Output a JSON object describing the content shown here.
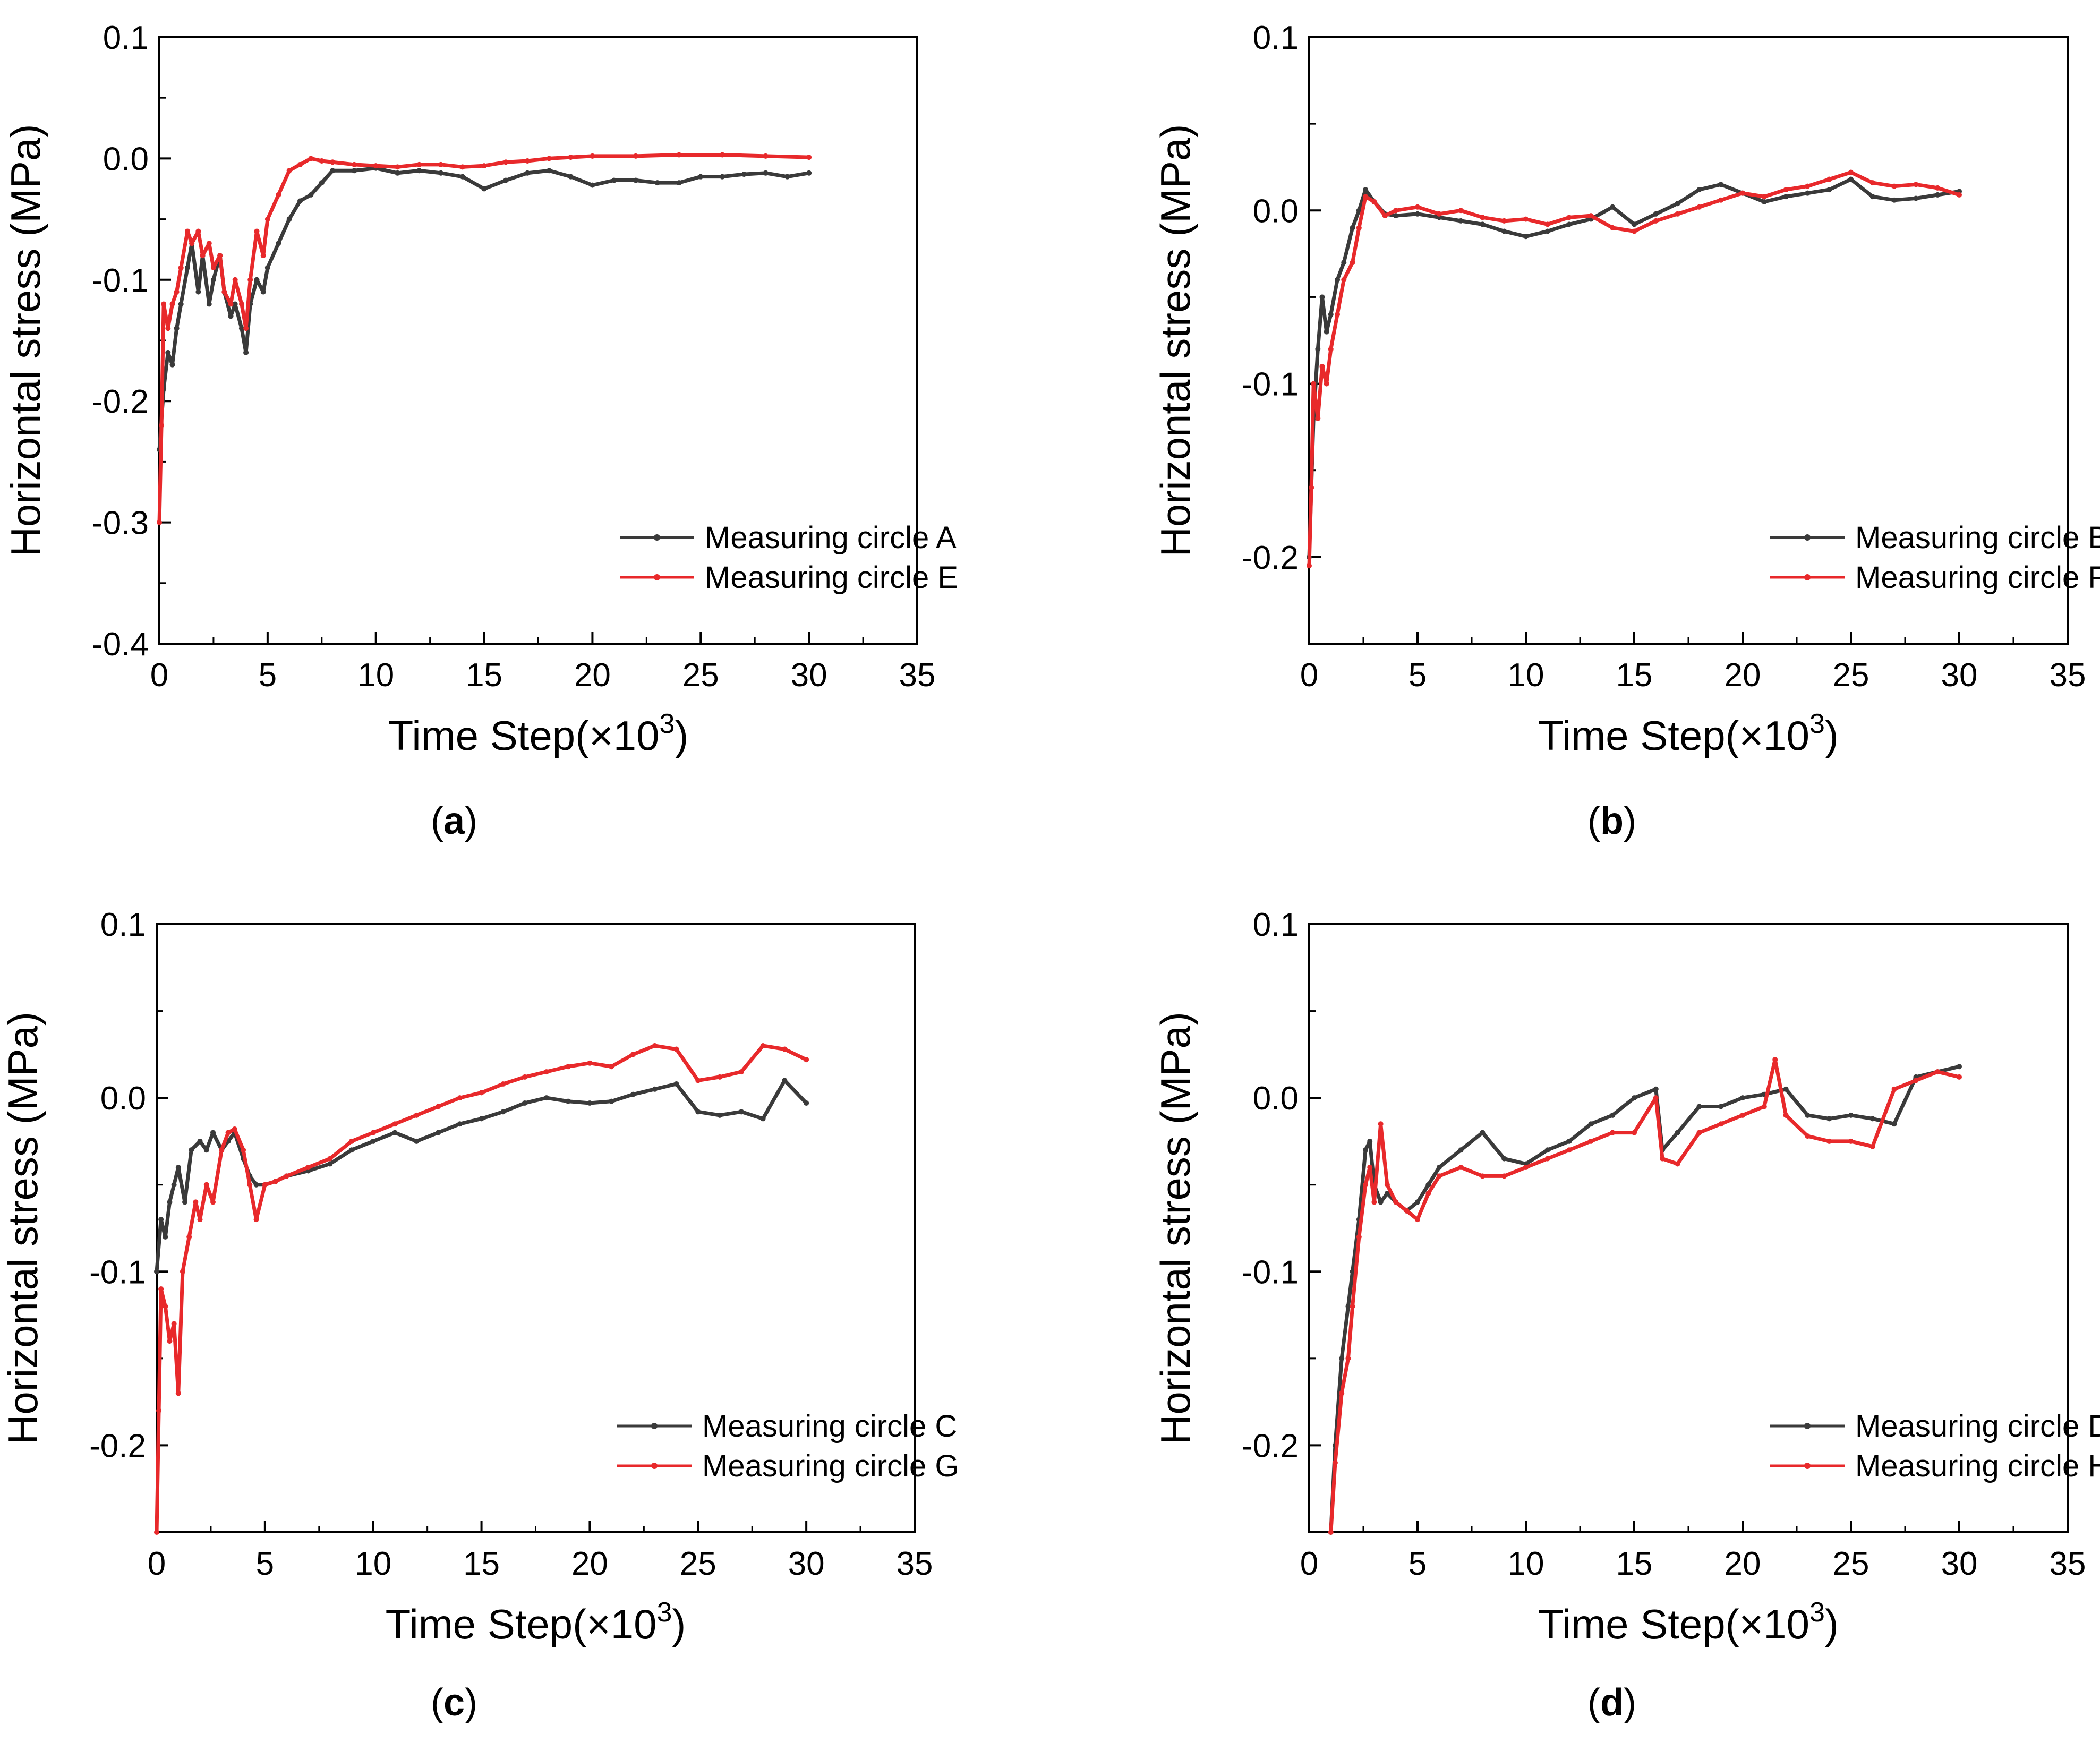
{
  "figure": {
    "colors": {
      "series_black": "#3a3a3a",
      "series_red": "#e8292b",
      "axis": "#000000"
    },
    "captions": [
      "a",
      "b",
      "c",
      "d"
    ]
  },
  "chart_data": [
    {
      "type": "line",
      "panel": "a",
      "xlabel": "Time Step(×10",
      "xlabel_sup": "3",
      "xlabel_close": ")",
      "ylabel": "Horizontal stress (MPa)",
      "xlim": [
        0,
        35
      ],
      "ylim": [
        -0.4,
        0.1
      ],
      "xticks": [
        0,
        5,
        10,
        15,
        20,
        25,
        30,
        35
      ],
      "xtick_labels": [
        "0",
        "5",
        "10",
        "15",
        "20",
        "25",
        "30",
        "35"
      ],
      "yticks": [
        -0.4,
        -0.3,
        -0.2,
        -0.1,
        0.0,
        0.1
      ],
      "ytick_labels": [
        "-0.4",
        "-0.3",
        "-0.2",
        "-0.1",
        "0.0",
        "0.1"
      ],
      "legend_position": "bottom-right",
      "series": [
        {
          "name": "Measuring circle A",
          "color": "#3a3a3a",
          "x": [
            0,
            0.2,
            0.4,
            0.6,
            0.8,
            1.0,
            1.3,
            1.5,
            1.8,
            2.0,
            2.3,
            2.5,
            2.8,
            3.0,
            3.3,
            3.5,
            3.8,
            4.0,
            4.2,
            4.5,
            4.8,
            5.0,
            5.5,
            6.0,
            6.5,
            7.0,
            7.5,
            8.0,
            9.0,
            10.0,
            11.0,
            12.0,
            13.0,
            14.0,
            15.0,
            16.0,
            17.0,
            18.0,
            19.0,
            20.0,
            21.0,
            22.0,
            23.0,
            24.0,
            25.0,
            26.0,
            27.0,
            28.0,
            29.0,
            30.0
          ],
          "y": [
            -0.24,
            -0.19,
            -0.16,
            -0.17,
            -0.14,
            -0.12,
            -0.09,
            -0.07,
            -0.11,
            -0.08,
            -0.12,
            -0.1,
            -0.08,
            -0.11,
            -0.13,
            -0.12,
            -0.14,
            -0.16,
            -0.12,
            -0.1,
            -0.11,
            -0.09,
            -0.07,
            -0.05,
            -0.035,
            -0.03,
            -0.02,
            -0.01,
            -0.01,
            -0.008,
            -0.012,
            -0.01,
            -0.012,
            -0.015,
            -0.025,
            -0.018,
            -0.012,
            -0.01,
            -0.015,
            -0.022,
            -0.018,
            -0.018,
            -0.02,
            -0.02,
            -0.015,
            -0.015,
            -0.013,
            -0.012,
            -0.015,
            -0.012
          ]
        },
        {
          "name": "Measuring circle E",
          "color": "#e8292b",
          "x": [
            0,
            0.1,
            0.2,
            0.4,
            0.6,
            0.8,
            1.0,
            1.3,
            1.5,
            1.8,
            2.0,
            2.3,
            2.5,
            2.8,
            3.0,
            3.3,
            3.5,
            3.8,
            4.0,
            4.2,
            4.5,
            4.8,
            5.0,
            5.5,
            6.0,
            6.5,
            7.0,
            7.5,
            8.0,
            9.0,
            10.0,
            11.0,
            12.0,
            13.0,
            14.0,
            15.0,
            16.0,
            17.0,
            18.0,
            19.0,
            20.0,
            22.0,
            24.0,
            26.0,
            28.0,
            30.0
          ],
          "y": [
            -0.3,
            -0.22,
            -0.12,
            -0.14,
            -0.12,
            -0.11,
            -0.09,
            -0.06,
            -0.07,
            -0.06,
            -0.08,
            -0.07,
            -0.09,
            -0.08,
            -0.11,
            -0.12,
            -0.1,
            -0.12,
            -0.14,
            -0.1,
            -0.06,
            -0.08,
            -0.05,
            -0.03,
            -0.01,
            -0.005,
            0.0,
            -0.002,
            -0.003,
            -0.005,
            -0.006,
            -0.007,
            -0.005,
            -0.005,
            -0.007,
            -0.006,
            -0.003,
            -0.002,
            0.0,
            0.001,
            0.002,
            0.002,
            0.003,
            0.003,
            0.002,
            0.001
          ]
        }
      ]
    },
    {
      "type": "line",
      "panel": "b",
      "xlabel": "Time Step(×10",
      "xlabel_sup": "3",
      "xlabel_close": ")",
      "ylabel": "Horizontal stress (MPa)",
      "xlim": [
        0,
        35
      ],
      "ylim": [
        -0.25,
        0.1
      ],
      "xticks": [
        0,
        5,
        10,
        15,
        20,
        25,
        30,
        35
      ],
      "xtick_labels": [
        "0",
        "5",
        "10",
        "15",
        "20",
        "25",
        "30",
        "35"
      ],
      "yticks": [
        -0.2,
        -0.1,
        0.0,
        0.1
      ],
      "ytick_labels": [
        "-0.2",
        "-0.1",
        "0.0",
        "0.1"
      ],
      "legend_position": "bottom-right",
      "series": [
        {
          "name": "Measuring circle B",
          "color": "#3a3a3a",
          "x": [
            0,
            0.2,
            0.4,
            0.6,
            0.8,
            1.0,
            1.3,
            1.6,
            2.0,
            2.3,
            2.6,
            3.0,
            3.5,
            4.0,
            5.0,
            6.0,
            7.0,
            8.0,
            9.0,
            10.0,
            11.0,
            12.0,
            13.0,
            14.0,
            15.0,
            16.0,
            17.0,
            18.0,
            19.0,
            20.0,
            21.0,
            22.0,
            23.0,
            24.0,
            25.0,
            26.0,
            27.0,
            28.0,
            29.0,
            30.0
          ],
          "y": [
            -0.2,
            -0.12,
            -0.08,
            -0.05,
            -0.07,
            -0.06,
            -0.04,
            -0.03,
            -0.01,
            0.0,
            0.012,
            0.005,
            -0.002,
            -0.003,
            -0.002,
            -0.004,
            -0.006,
            -0.008,
            -0.012,
            -0.015,
            -0.012,
            -0.008,
            -0.005,
            0.002,
            -0.008,
            -0.002,
            0.004,
            0.012,
            0.015,
            0.01,
            0.005,
            0.008,
            0.01,
            0.012,
            0.018,
            0.008,
            0.006,
            0.007,
            0.009,
            0.011
          ]
        },
        {
          "name": "Measuring circle F",
          "color": "#e8292b",
          "x": [
            0,
            0.1,
            0.2,
            0.4,
            0.6,
            0.8,
            1.0,
            1.3,
            1.6,
            2.0,
            2.3,
            2.6,
            3.0,
            3.5,
            4.0,
            5.0,
            6.0,
            7.0,
            8.0,
            9.0,
            10.0,
            11.0,
            12.0,
            13.0,
            14.0,
            15.0,
            16.0,
            17.0,
            18.0,
            19.0,
            20.0,
            21.0,
            22.0,
            23.0,
            24.0,
            25.0,
            26.0,
            27.0,
            28.0,
            29.0,
            30.0
          ],
          "y": [
            -0.205,
            -0.16,
            -0.1,
            -0.12,
            -0.09,
            -0.1,
            -0.08,
            -0.06,
            -0.04,
            -0.03,
            -0.01,
            0.008,
            0.005,
            -0.003,
            0.0,
            0.002,
            -0.002,
            0.0,
            -0.004,
            -0.006,
            -0.005,
            -0.008,
            -0.004,
            -0.003,
            -0.01,
            -0.012,
            -0.006,
            -0.002,
            0.002,
            0.006,
            0.01,
            0.008,
            0.012,
            0.014,
            0.018,
            0.022,
            0.016,
            0.014,
            0.015,
            0.013,
            0.009
          ]
        }
      ]
    },
    {
      "type": "line",
      "panel": "c",
      "xlabel": "Time Step(×10",
      "xlabel_sup": "3",
      "xlabel_close": ")",
      "ylabel": "Horizontal stress (MPa)",
      "xlim": [
        0,
        35
      ],
      "ylim": [
        -0.25,
        0.1
      ],
      "xticks": [
        0,
        5,
        10,
        15,
        20,
        25,
        30,
        35
      ],
      "xtick_labels": [
        "0",
        "5",
        "10",
        "15",
        "20",
        "25",
        "30",
        "35"
      ],
      "yticks": [
        -0.2,
        -0.1,
        0.0,
        0.1
      ],
      "ytick_labels": [
        "-0.2",
        "-0.1",
        "0.0",
        "0.1"
      ],
      "legend_position": "bottom-right",
      "series": [
        {
          "name": "Measuring circle C",
          "color": "#3a3a3a",
          "x": [
            0,
            0.2,
            0.4,
            0.6,
            0.8,
            1.0,
            1.3,
            1.6,
            2.0,
            2.3,
            2.6,
            3.0,
            3.3,
            3.6,
            4.0,
            4.3,
            4.6,
            5.0,
            5.5,
            6.0,
            7.0,
            8.0,
            9.0,
            10.0,
            11.0,
            12.0,
            13.0,
            14.0,
            15.0,
            16.0,
            17.0,
            18.0,
            19.0,
            20.0,
            21.0,
            22.0,
            23.0,
            24.0,
            25.0,
            26.0,
            27.0,
            28.0,
            29.0,
            30.0
          ],
          "y": [
            -0.1,
            -0.07,
            -0.08,
            -0.06,
            -0.05,
            -0.04,
            -0.06,
            -0.03,
            -0.025,
            -0.03,
            -0.02,
            -0.03,
            -0.025,
            -0.02,
            -0.035,
            -0.045,
            -0.05,
            -0.05,
            -0.048,
            -0.045,
            -0.042,
            -0.038,
            -0.03,
            -0.025,
            -0.02,
            -0.025,
            -0.02,
            -0.015,
            -0.012,
            -0.008,
            -0.003,
            0.0,
            -0.002,
            -0.003,
            -0.002,
            0.002,
            0.005,
            0.008,
            -0.008,
            -0.01,
            -0.008,
            -0.012,
            0.01,
            -0.003
          ]
        },
        {
          "name": "Measuring circle G",
          "color": "#e8292b",
          "x": [
            0,
            0.1,
            0.2,
            0.4,
            0.6,
            0.8,
            1.0,
            1.2,
            1.5,
            1.8,
            2.0,
            2.3,
            2.6,
            3.0,
            3.3,
            3.6,
            4.0,
            4.3,
            4.6,
            5.0,
            5.5,
            6.0,
            7.0,
            8.0,
            9.0,
            10.0,
            11.0,
            12.0,
            13.0,
            14.0,
            15.0,
            16.0,
            17.0,
            18.0,
            19.0,
            20.0,
            21.0,
            22.0,
            23.0,
            24.0,
            25.0,
            26.0,
            27.0,
            28.0,
            29.0,
            30.0
          ],
          "y": [
            -0.25,
            -0.18,
            -0.11,
            -0.12,
            -0.14,
            -0.13,
            -0.17,
            -0.1,
            -0.08,
            -0.06,
            -0.07,
            -0.05,
            -0.06,
            -0.03,
            -0.02,
            -0.018,
            -0.03,
            -0.05,
            -0.07,
            -0.05,
            -0.048,
            -0.045,
            -0.04,
            -0.035,
            -0.025,
            -0.02,
            -0.015,
            -0.01,
            -0.005,
            0.0,
            0.003,
            0.008,
            0.012,
            0.015,
            0.018,
            0.02,
            0.018,
            0.025,
            0.03,
            0.028,
            0.01,
            0.012,
            0.015,
            0.03,
            0.028,
            0.022
          ]
        }
      ]
    },
    {
      "type": "line",
      "panel": "d",
      "xlabel": "Time Step(×10",
      "xlabel_sup": "3",
      "xlabel_close": ")",
      "ylabel": "Horizontal stress (MPa)",
      "xlim": [
        0,
        35
      ],
      "ylim": [
        -0.25,
        0.1
      ],
      "xticks": [
        0,
        5,
        10,
        15,
        20,
        25,
        30,
        35
      ],
      "xtick_labels": [
        "0",
        "5",
        "10",
        "15",
        "20",
        "25",
        "30",
        "35"
      ],
      "yticks": [
        -0.2,
        -0.1,
        0.0,
        0.1
      ],
      "ytick_labels": [
        "-0.2",
        "-0.1",
        "0.0",
        "0.1"
      ],
      "legend_position": "bottom-right",
      "series": [
        {
          "name": "Measuring circle D",
          "color": "#3a3a3a",
          "x": [
            1.0,
            1.2,
            1.5,
            1.8,
            2.0,
            2.3,
            2.6,
            2.8,
            3.0,
            3.3,
            3.6,
            4.0,
            4.5,
            5.0,
            5.5,
            6.0,
            7.0,
            8.0,
            9.0,
            10.0,
            11.0,
            12.0,
            13.0,
            14.0,
            15.0,
            16.0,
            16.3,
            17.0,
            18.0,
            19.0,
            20.0,
            21.0,
            22.0,
            23.0,
            24.0,
            25.0,
            26.0,
            27.0,
            28.0,
            29.0,
            30.0
          ],
          "y": [
            -0.25,
            -0.2,
            -0.15,
            -0.12,
            -0.1,
            -0.07,
            -0.03,
            -0.025,
            -0.05,
            -0.06,
            -0.055,
            -0.06,
            -0.065,
            -0.06,
            -0.05,
            -0.04,
            -0.03,
            -0.02,
            -0.035,
            -0.038,
            -0.03,
            -0.025,
            -0.015,
            -0.01,
            0.0,
            0.005,
            -0.03,
            -0.02,
            -0.005,
            -0.005,
            0.0,
            0.002,
            0.005,
            -0.01,
            -0.012,
            -0.01,
            -0.012,
            -0.015,
            0.012,
            0.015,
            0.018
          ]
        },
        {
          "name": "Measuring circle H",
          "color": "#e8292b",
          "x": [
            1.0,
            1.2,
            1.5,
            1.8,
            2.0,
            2.3,
            2.6,
            2.8,
            3.0,
            3.3,
            3.6,
            4.0,
            4.5,
            5.0,
            5.5,
            6.0,
            7.0,
            8.0,
            9.0,
            10.0,
            11.0,
            12.0,
            13.0,
            14.0,
            15.0,
            16.0,
            16.3,
            17.0,
            18.0,
            19.0,
            20.0,
            21.0,
            21.5,
            22.0,
            23.0,
            24.0,
            25.0,
            26.0,
            27.0,
            28.0,
            29.0,
            30.0
          ],
          "y": [
            -0.25,
            -0.21,
            -0.17,
            -0.15,
            -0.12,
            -0.08,
            -0.05,
            -0.04,
            -0.06,
            -0.015,
            -0.05,
            -0.06,
            -0.065,
            -0.07,
            -0.055,
            -0.045,
            -0.04,
            -0.045,
            -0.045,
            -0.04,
            -0.035,
            -0.03,
            -0.025,
            -0.02,
            -0.02,
            0.0,
            -0.035,
            -0.038,
            -0.02,
            -0.015,
            -0.01,
            -0.005,
            0.022,
            -0.01,
            -0.022,
            -0.025,
            -0.025,
            -0.028,
            0.005,
            0.01,
            0.015,
            0.012
          ]
        }
      ]
    }
  ]
}
